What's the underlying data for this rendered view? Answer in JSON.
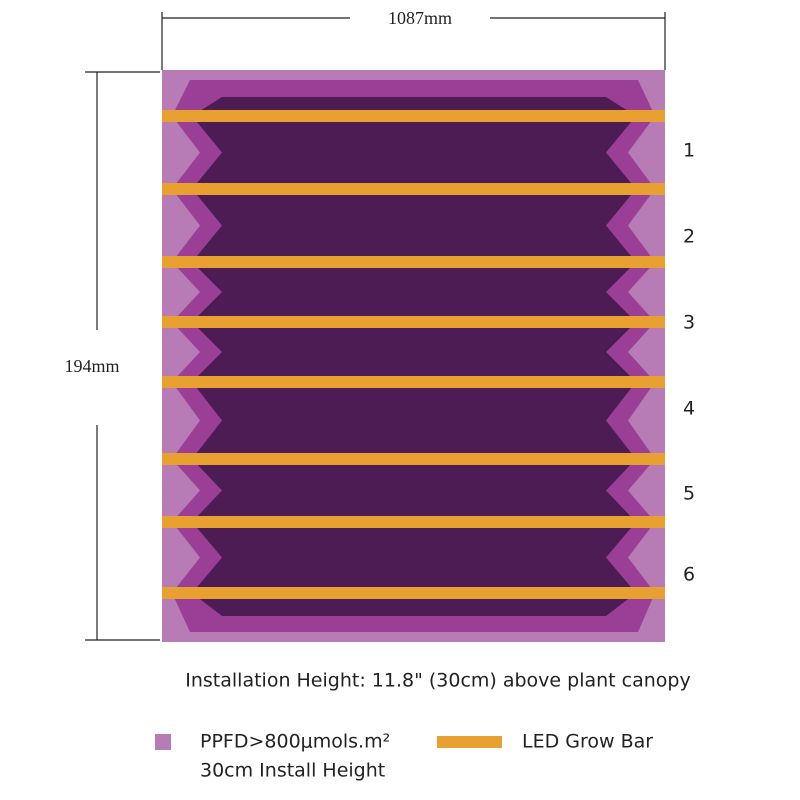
{
  "dimensions": {
    "width": "1087mm",
    "height": "194mm"
  },
  "bar_labels": [
    "1",
    "2",
    "3",
    "4",
    "5",
    "6"
  ],
  "caption": "Installation Height: 11.8\" (30cm) above plant canopy",
  "legend": [
    {
      "label": "PPFD>800μmols.m²",
      "sublabel": "30cm Install Height"
    },
    {
      "label": "LED Grow Bar"
    }
  ]
}
